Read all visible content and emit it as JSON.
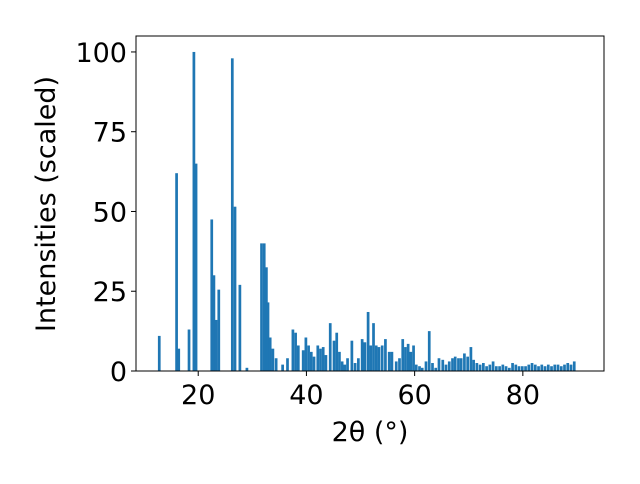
{
  "chart_data": {
    "type": "bar",
    "title": "",
    "xlabel": "2θ (°)",
    "ylabel": "Intensities (scaled)",
    "xlim": [
      8.5,
      95
    ],
    "ylim": [
      0,
      105
    ],
    "xticks": [
      20,
      40,
      60,
      80
    ],
    "yticks": [
      0,
      25,
      50,
      75,
      100
    ],
    "grid": false,
    "bar_color": "#1f77b4",
    "bar_width": 0.5,
    "x": [
      12.8,
      16.0,
      16.4,
      18.3,
      19.2,
      19.6,
      22.5,
      22.9,
      23.3,
      23.8,
      26.3,
      26.8,
      27.7,
      29.0,
      31.7,
      32.2,
      32.6,
      32.9,
      33.3,
      33.8,
      34.4,
      35.6,
      36.5,
      37.5,
      38.0,
      38.5,
      39.4,
      39.9,
      40.4,
      40.9,
      41.4,
      42.1,
      42.6,
      43.1,
      43.6,
      44.4,
      45.1,
      45.6,
      46.1,
      46.6,
      47.1,
      47.6,
      48.4,
      49.0,
      49.6,
      50.3,
      50.8,
      51.4,
      51.9,
      52.4,
      52.9,
      53.4,
      54.0,
      54.6,
      55.3,
      55.8,
      56.6,
      57.2,
      57.8,
      58.3,
      58.8,
      59.3,
      59.8,
      60.3,
      60.9,
      61.4,
      62.1,
      62.7,
      63.3,
      63.9,
      64.5,
      65.2,
      65.8,
      66.4,
      67.0,
      67.5,
      68.1,
      68.6,
      69.2,
      69.8,
      70.4,
      70.9,
      71.5,
      72.1,
      72.7,
      73.3,
      73.9,
      74.5,
      75.1,
      75.7,
      76.3,
      76.9,
      77.5,
      78.1,
      78.7,
      79.3,
      79.9,
      80.5,
      81.1,
      81.7,
      82.3,
      82.9,
      83.5,
      84.1,
      84.7,
      85.3,
      85.9,
      86.5,
      87.1,
      87.7,
      88.3,
      88.9,
      89.5
    ],
    "values": [
      11,
      62,
      7,
      13,
      100,
      65,
      47.5,
      30,
      16,
      25.5,
      98,
      51.5,
      27,
      1,
      40,
      40,
      32.5,
      21.5,
      10.5,
      7,
      4,
      2,
      4,
      13,
      12,
      8,
      6.5,
      10.5,
      8,
      6,
      4.5,
      8,
      7,
      7.5,
      5,
      15,
      9.5,
      12,
      6,
      3,
      2,
      4,
      9.5,
      2.5,
      4,
      10,
      9,
      18.5,
      8,
      15,
      8,
      7.5,
      8,
      10,
      6,
      6,
      3,
      4,
      10,
      7.5,
      8.5,
      6,
      8,
      2,
      1.5,
      1,
      3,
      12.5,
      2.5,
      1,
      4,
      3.5,
      2,
      3,
      4,
      4.5,
      4,
      4,
      5.5,
      4.5,
      7.5,
      3.5,
      2.5,
      2,
      2.5,
      1.5,
      2,
      3,
      1.5,
      1.5,
      2,
      1.5,
      1,
      2.5,
      2,
      1.5,
      1.5,
      1.5,
      2,
      2.5,
      2,
      1.5,
      2,
      1.5,
      2,
      1.5,
      2,
      2,
      1.5,
      2,
      2.5,
      2,
      3
    ]
  }
}
